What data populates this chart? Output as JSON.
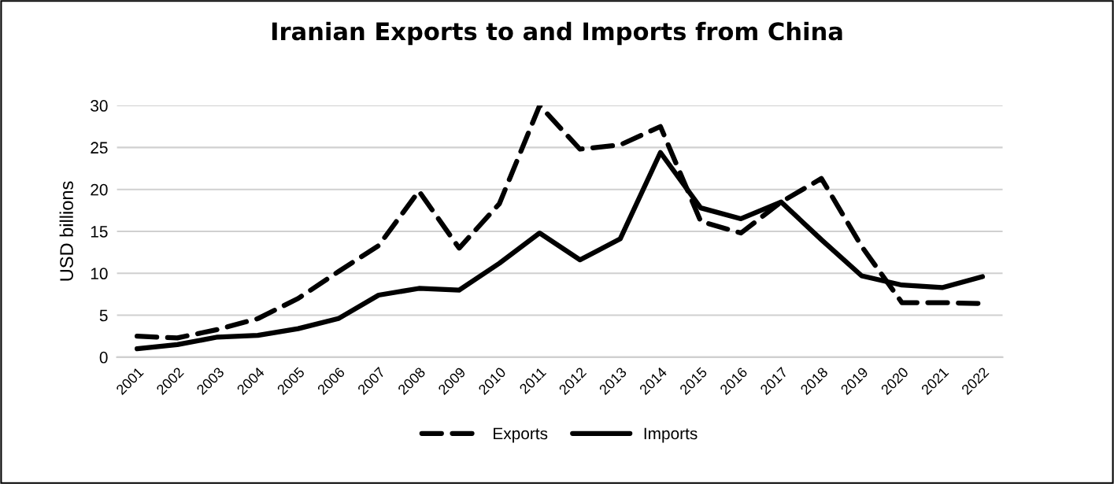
{
  "chart_data": {
    "type": "line",
    "title": "Iranian Exports to and Imports from China",
    "ylabel": "USD billions",
    "categories": [
      "2001",
      "2002",
      "2003",
      "2004",
      "2005",
      "2006",
      "2007",
      "2008",
      "2009",
      "2010",
      "2011",
      "2012",
      "2013",
      "2014",
      "2015",
      "2016",
      "2017",
      "2018",
      "2019",
      "2020",
      "2021",
      "2022"
    ],
    "series": [
      {
        "name": "Exports",
        "color": "#000000",
        "line_style": "dashed",
        "values": [
          2.5,
          2.3,
          3.3,
          4.6,
          7.0,
          10.2,
          13.3,
          19.8,
          13.0,
          18.3,
          30.0,
          24.8,
          25.3,
          27.5,
          16.2,
          14.8,
          18.5,
          21.3,
          13.2,
          6.5,
          6.5,
          6.4
        ]
      },
      {
        "name": "Imports",
        "color": "#000000",
        "line_style": "solid",
        "values": [
          1.0,
          1.5,
          2.4,
          2.6,
          3.4,
          4.6,
          7.4,
          8.2,
          8.0,
          11.2,
          14.8,
          11.6,
          14.1,
          24.4,
          17.8,
          16.5,
          18.5,
          14.0,
          9.7,
          8.6,
          8.3,
          9.6
        ]
      }
    ],
    "ylim": [
      0,
      30
    ],
    "yticks": [
      0,
      5,
      10,
      15,
      20,
      25,
      30
    ],
    "grid": "y",
    "legend": "bottom",
    "marker": "none"
  }
}
